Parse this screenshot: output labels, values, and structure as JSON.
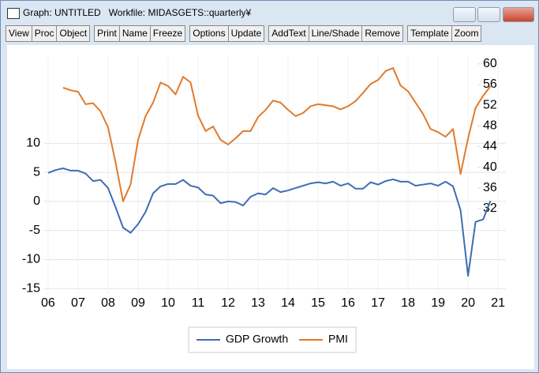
{
  "window": {
    "title": "Graph: UNTITLED   Workfile: MIDASGETS::quarterly¥",
    "toolbar": [
      [
        "View",
        "Proc",
        "Object"
      ],
      [
        "Print",
        "Name",
        "Freeze"
      ],
      [
        "Options",
        "Update"
      ],
      [
        "AddText",
        "Line/Shade",
        "Remove"
      ],
      [
        "Template",
        "Zoom"
      ]
    ]
  },
  "chart_data": {
    "type": "line",
    "x": [
      2006,
      2006.25,
      2006.5,
      2006.75,
      2007,
      2007.25,
      2007.5,
      2007.75,
      2008,
      2008.25,
      2008.5,
      2008.75,
      2009,
      2009.25,
      2009.5,
      2009.75,
      2010,
      2010.25,
      2010.5,
      2010.75,
      2011,
      2011.25,
      2011.5,
      2011.75,
      2012,
      2012.25,
      2012.5,
      2012.75,
      2013,
      2013.25,
      2013.5,
      2013.75,
      2014,
      2014.25,
      2014.5,
      2014.75,
      2015,
      2015.25,
      2015.5,
      2015.75,
      2016,
      2016.25,
      2016.5,
      2016.75,
      2017,
      2017.25,
      2017.5,
      2017.75,
      2018,
      2018.25,
      2018.5,
      2018.75,
      2019,
      2019.25,
      2019.5,
      2019.75,
      2020,
      2020.25,
      2020.5,
      2020.75
    ],
    "series": [
      {
        "name": "GDP Growth",
        "color": "#3e6db5",
        "values": [
          4.9,
          5.4,
          5.7,
          5.3,
          5.3,
          4.8,
          3.5,
          3.7,
          2.3,
          -1,
          -4.5,
          -5.4,
          -3.9,
          -1.8,
          1.4,
          2.6,
          3.0,
          3.0,
          3.7,
          2.7,
          2.4,
          1.2,
          1.0,
          -0.3,
          0,
          -0.1,
          -0.7,
          0.8,
          1.4,
          1.2,
          2.3,
          1.6,
          1.9,
          2.3,
          2.7,
          3.1,
          3.3,
          3.1,
          3.4,
          2.7,
          3.1,
          2.2,
          2.2,
          3.3,
          2.9,
          3.5,
          3.8,
          3.4,
          3.4,
          2.7,
          2.9,
          3.1,
          2.7,
          3.4,
          2.6,
          -1.5,
          -12.8,
          -3.5,
          -3.1,
          0.1
        ]
      },
      {
        "name": "PMI",
        "color": "#e07b2d",
        "axis": "y2",
        "values": [
          null,
          null,
          55.4,
          54.9,
          54.6,
          52.2,
          52.4,
          50.8,
          47.7,
          40.9,
          33.4,
          36.7,
          45.3,
          49.9,
          52.5,
          56.4,
          55.7,
          54.1,
          57.5,
          56.4,
          50.0,
          47.0,
          47.9,
          45.3,
          44.4,
          45.6,
          47.0,
          47.0,
          49.7,
          51.1,
          52.9,
          52.5,
          51.1,
          49.9,
          50.5,
          51.8,
          52.2,
          52.0,
          51.8,
          51.2,
          51.8,
          52.8,
          54.4,
          56.1,
          56.9,
          58.6,
          59.2,
          55.8,
          54.7,
          52.5,
          50.3,
          47.4,
          46.8,
          45.9,
          47.4,
          38.7,
          45.6,
          51.5,
          53.8,
          55.7
        ]
      }
    ],
    "xlim": [
      2005.87,
      2021.26
    ],
    "xticks": [
      {
        "value": 2006,
        "label": "06"
      },
      {
        "value": 2007,
        "label": "07"
      },
      {
        "value": 2008,
        "label": "08"
      },
      {
        "value": 2009,
        "label": "09"
      },
      {
        "value": 2010,
        "label": "10"
      },
      {
        "value": 2011,
        "label": "11"
      },
      {
        "value": 2012,
        "label": "12"
      },
      {
        "value": 2013,
        "label": "13"
      },
      {
        "value": 2014,
        "label": "14"
      },
      {
        "value": 2015,
        "label": "15"
      },
      {
        "value": 2016,
        "label": "16"
      },
      {
        "value": 2017,
        "label": "17"
      },
      {
        "value": 2018,
        "label": "18"
      },
      {
        "value": 2019,
        "label": "19"
      },
      {
        "value": 2020,
        "label": "20"
      },
      {
        "value": 2021,
        "label": "21"
      }
    ],
    "ylim": [
      -16,
      25
    ],
    "yticks": [
      -15,
      -10,
      -5,
      0,
      5,
      10
    ],
    "y2lim": [
      15.4,
      61.5
    ],
    "y2ticks": [
      32,
      36,
      40,
      44,
      48,
      52,
      56,
      60
    ],
    "grid": true,
    "legend": "bottom"
  }
}
